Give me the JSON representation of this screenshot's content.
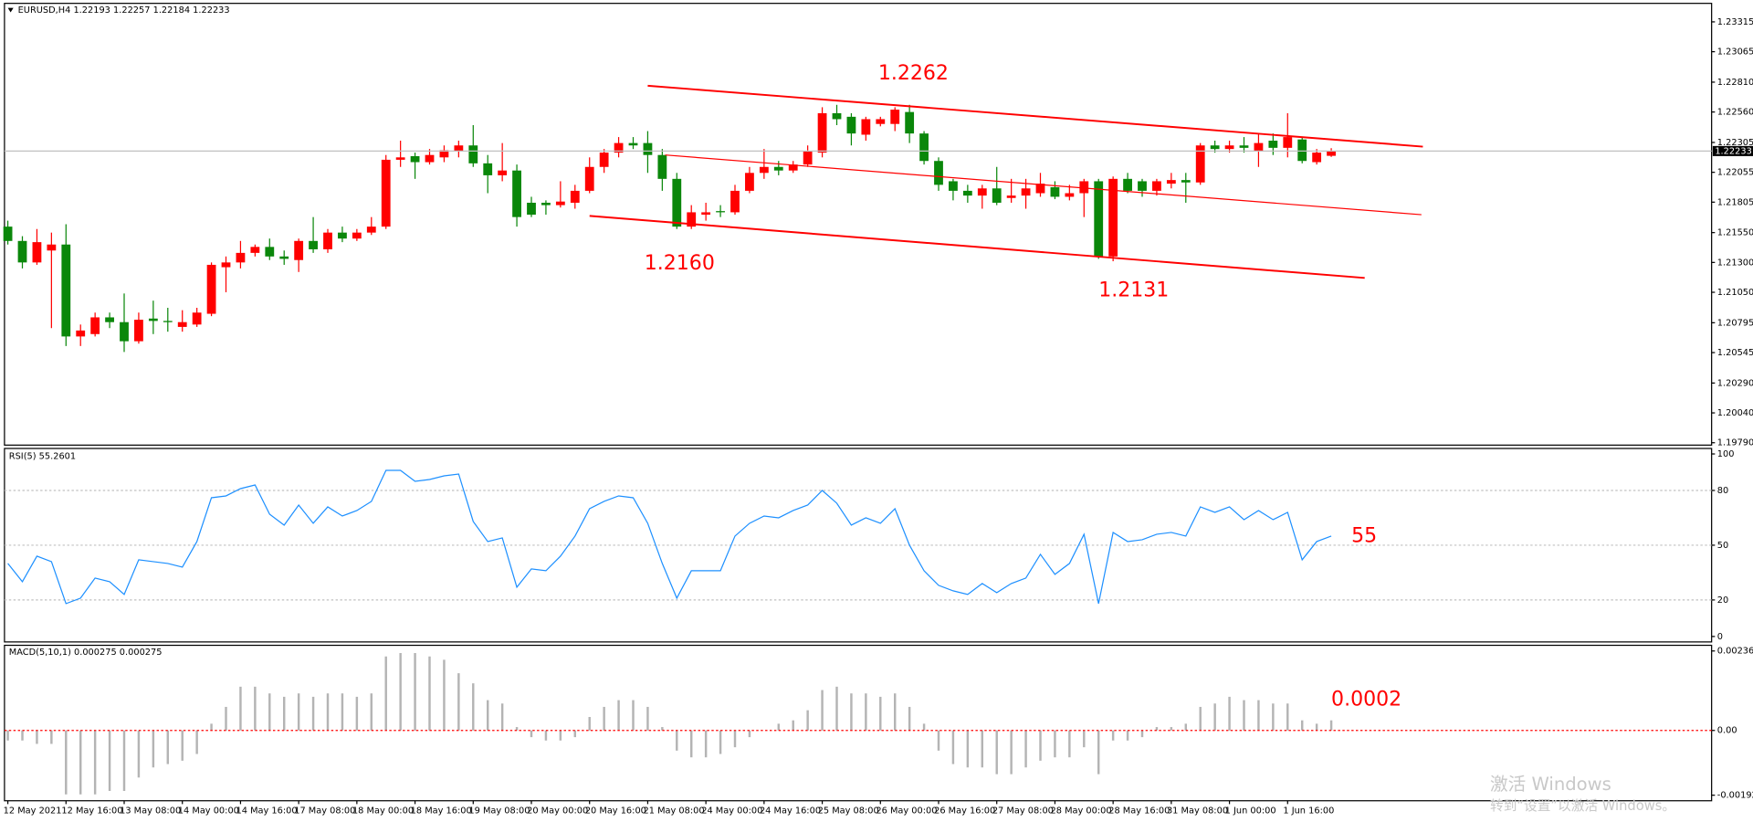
{
  "chart_data": [
    {
      "type": "candlestick",
      "title": "EURUSD,H4  1.22193 1.22257 1.22184 1.22233",
      "categories": [
        "12 May 2021",
        null,
        null,
        null,
        "12 May 16:00",
        null,
        null,
        null,
        "13 May 08:00",
        null,
        null,
        null,
        "14 May 00:00",
        null,
        null,
        null,
        "14 May 16:00",
        null,
        null,
        null,
        "17 May 08:00",
        null,
        null,
        null,
        "18 May 00:00",
        null,
        null,
        null,
        "18 May 16:00",
        null,
        null,
        null,
        "19 May 08:00",
        null,
        null,
        null,
        "20 May 00:00",
        null,
        null,
        null,
        "20 May 16:00",
        null,
        null,
        null,
        "21 May 08:00",
        null,
        null,
        null,
        "24 May 00:00",
        null,
        null,
        null,
        "24 May 16:00",
        null,
        null,
        null,
        "25 May 08:00",
        null,
        null,
        null,
        "26 May 00:00",
        null,
        null,
        null,
        "26 May 16:00",
        null,
        null,
        null,
        "27 May 08:00",
        null,
        null,
        null,
        "28 May 00:00",
        null,
        null,
        null,
        "28 May 16:00",
        null,
        null,
        null,
        "31 May 08:00",
        null,
        null,
        null,
        "1 Jun 00:00",
        null,
        null,
        null,
        "1 Jun 16:00",
        null,
        null,
        null
      ],
      "open": [
        1.216,
        1.2148,
        1.213,
        1.214,
        1.2145,
        1.2068,
        1.207,
        1.2084,
        1.208,
        1.2064,
        1.2083,
        1.2081,
        1.2076,
        1.2078,
        1.2087,
        1.2126,
        1.213,
        1.2138,
        1.2143,
        1.2135,
        1.2132,
        1.2148,
        1.2141,
        1.2155,
        1.215,
        1.2155,
        1.216,
        1.2216,
        1.2219,
        1.2214,
        1.2218,
        1.2223,
        1.2228,
        1.2213,
        1.2203,
        1.2207,
        1.218,
        1.218,
        1.2178,
        1.218,
        1.219,
        1.221,
        1.2222,
        1.223,
        1.223,
        1.222,
        1.22,
        1.216,
        1.217,
        1.2173,
        1.2172,
        1.219,
        1.2205,
        1.221,
        1.2207,
        1.2212,
        1.2222,
        1.2255,
        1.2252,
        1.2237,
        1.2246,
        1.2246,
        1.2256,
        1.2238,
        1.2215,
        1.2198,
        1.219,
        1.2186,
        1.2192,
        1.2184,
        1.2186,
        1.2188,
        1.2193,
        1.2185,
        1.2188,
        1.2198,
        1.2135,
        1.22,
        1.2198,
        1.219,
        1.2196,
        1.2199,
        1.2197,
        1.2228,
        1.2225,
        1.2228,
        1.2223,
        1.2232,
        1.2226,
        1.2233,
        1.2214,
        1.22193
      ],
      "high": [
        1.2165,
        1.2152,
        1.2158,
        1.2155,
        1.2162,
        1.2078,
        1.2088,
        1.2088,
        1.2104,
        1.2088,
        1.2098,
        1.2092,
        1.209,
        1.2092,
        1.213,
        1.2135,
        1.2148,
        1.2145,
        1.215,
        1.214,
        1.215,
        1.2168,
        1.2158,
        1.216,
        1.2158,
        1.2168,
        1.222,
        1.2232,
        1.2222,
        1.2225,
        1.2228,
        1.2232,
        1.2245,
        1.222,
        1.223,
        1.2212,
        1.2185,
        1.2182,
        1.2198,
        1.2195,
        1.2218,
        1.2225,
        1.2235,
        1.2235,
        1.224,
        1.2225,
        1.2205,
        1.2178,
        1.218,
        1.2178,
        1.2195,
        1.221,
        1.2225,
        1.2215,
        1.2215,
        1.2228,
        1.226,
        1.2262,
        1.2255,
        1.2252,
        1.2252,
        1.226,
        1.2262,
        1.224,
        1.2218,
        1.22,
        1.2195,
        1.2195,
        1.221,
        1.22,
        1.22,
        1.2205,
        1.2198,
        1.2195,
        1.22,
        1.22,
        1.2202,
        1.2205,
        1.22,
        1.22,
        1.2205,
        1.2205,
        1.223,
        1.2232,
        1.2232,
        1.2235,
        1.2238,
        1.2238,
        1.2255,
        1.2235,
        1.2225,
        1.22257
      ],
      "low": [
        1.2145,
        1.2125,
        1.2128,
        1.2075,
        1.206,
        1.206,
        1.2068,
        1.2075,
        1.2055,
        1.2062,
        1.207,
        1.2072,
        1.2072,
        1.2076,
        1.2085,
        1.2105,
        1.2125,
        1.2135,
        1.2132,
        1.2128,
        1.2122,
        1.2138,
        1.2138,
        1.2147,
        1.2148,
        1.2153,
        1.2158,
        1.221,
        1.22,
        1.2212,
        1.2214,
        1.2218,
        1.221,
        1.2188,
        1.2198,
        1.216,
        1.2168,
        1.217,
        1.2176,
        1.2175,
        1.2188,
        1.2205,
        1.2218,
        1.2225,
        1.2205,
        1.219,
        1.2158,
        1.2158,
        1.2165,
        1.2168,
        1.217,
        1.2188,
        1.22,
        1.2203,
        1.2205,
        1.221,
        1.2218,
        1.2245,
        1.2228,
        1.2232,
        1.2244,
        1.224,
        1.223,
        1.2212,
        1.219,
        1.2182,
        1.218,
        1.2175,
        1.2178,
        1.218,
        1.2175,
        1.2185,
        1.2183,
        1.2182,
        1.2168,
        1.2133,
        1.2131,
        1.2188,
        1.2185,
        1.2186,
        1.2192,
        1.218,
        1.2195,
        1.2222,
        1.2222,
        1.2222,
        1.221,
        1.222,
        1.2218,
        1.2213,
        1.2212,
        1.22184
      ],
      "close": [
        1.2148,
        1.213,
        1.2147,
        1.2145,
        1.2068,
        1.2073,
        1.2084,
        1.208,
        1.2064,
        1.2082,
        1.2081,
        1.208,
        1.208,
        1.2088,
        1.2128,
        1.213,
        1.2138,
        1.2143,
        1.2135,
        1.2133,
        1.2148,
        1.2141,
        1.2155,
        1.215,
        1.2155,
        1.216,
        1.2216,
        1.2218,
        1.2214,
        1.222,
        1.2224,
        1.2228,
        1.2213,
        1.2203,
        1.2207,
        1.2168,
        1.217,
        1.2178,
        1.2181,
        1.219,
        1.221,
        1.2222,
        1.223,
        1.2228,
        1.222,
        1.22,
        1.216,
        1.2172,
        1.2172,
        1.2172,
        1.219,
        1.2205,
        1.221,
        1.2207,
        1.2212,
        1.2223,
        1.2255,
        1.225,
        1.2238,
        1.225,
        1.225,
        1.2258,
        1.2238,
        1.2215,
        1.2195,
        1.219,
        1.2186,
        1.2192,
        1.218,
        1.2186,
        1.2192,
        1.2196,
        1.2185,
        1.2188,
        1.2198,
        1.2135,
        1.22,
        1.219,
        1.219,
        1.2198,
        1.2199,
        1.2197,
        1.2228,
        1.2225,
        1.2228,
        1.2226,
        1.223,
        1.2226,
        1.2235,
        1.2215,
        1.2222,
        1.22233
      ],
      "up_color": "#ff0000",
      "down_color": "#0a870a",
      "bid": 1.22233,
      "ylim": [
        1.1977,
        1.2347
      ],
      "yticks": [
        {
          "value": 1.23315,
          "label": "1.23315"
        },
        {
          "value": 1.23065,
          "label": "1.23065"
        },
        {
          "value": 1.2281,
          "label": "1.22810"
        },
        {
          "value": 1.2256,
          "label": "1.22560"
        },
        {
          "value": 1.22305,
          "label": "1.22305"
        },
        {
          "value": 1.22055,
          "label": "1.22055"
        },
        {
          "value": 1.21805,
          "label": "1.21805"
        },
        {
          "value": 1.2155,
          "label": "1.21550"
        },
        {
          "value": 1.213,
          "label": "1.21300"
        },
        {
          "value": 1.2105,
          "label": "1.21050"
        },
        {
          "value": 1.20795,
          "label": "1.20795"
        },
        {
          "value": 1.20545,
          "label": "1.20545"
        },
        {
          "value": 1.2029,
          "label": "1.20290"
        },
        {
          "value": 1.2004,
          "label": "1.20040"
        },
        {
          "value": 1.1979,
          "label": "1.19790"
        }
      ],
      "lines": [
        {
          "x": [
            44,
            97.3
          ],
          "y": [
            1.2278,
            1.2227
          ]
        },
        {
          "x": [
            45.2,
            97.2
          ],
          "y": [
            1.222,
            1.217
          ]
        },
        {
          "x": [
            40,
            93.3
          ],
          "y": [
            1.2169,
            1.2117
          ]
        }
      ],
      "line_color": "#ff0000",
      "annotations": [
        "1.2262",
        "1.2160",
        "1.2131"
      ]
    },
    {
      "type": "line",
      "title": "RSI(5) 55.2601",
      "color": "#1e90ff",
      "values": [
        40,
        30,
        44,
        41,
        18,
        21,
        32,
        30,
        23,
        42,
        41,
        40,
        38,
        52,
        76,
        77,
        81,
        83,
        67,
        61,
        72,
        62,
        71,
        66,
        69,
        74,
        91,
        91,
        85,
        86,
        88,
        89,
        63,
        52,
        54,
        27,
        37,
        36,
        44,
        55,
        70,
        74,
        77,
        76,
        62,
        40,
        21,
        36,
        36,
        36,
        55,
        62,
        66,
        65,
        69,
        72,
        80,
        73,
        61,
        65,
        62,
        70,
        50,
        36,
        28,
        25,
        23,
        29,
        24,
        29,
        32,
        45,
        34,
        40,
        56,
        18,
        57,
        52,
        53,
        56,
        57,
        55,
        71,
        68,
        71,
        64,
        69,
        64,
        68,
        42,
        52,
        55
      ],
      "ylim": [
        -3,
        103
      ],
      "yticks": [
        100,
        80,
        50,
        20,
        0
      ],
      "levels": [
        80,
        50,
        20
      ],
      "annotations": [
        "55"
      ]
    },
    {
      "type": "bar",
      "title": "MACD(5,10,1) 0.000275 0.000275",
      "color": "#b4b4b4",
      "zero_line_color": "#ff0000",
      "values": [
        -0.0003,
        -0.0003,
        -0.0004,
        -0.0004,
        -0.0019,
        -0.0019,
        -0.0019,
        -0.0018,
        -0.0018,
        -0.0014,
        -0.0011,
        -0.001,
        -0.0009,
        -0.0007,
        0.0002,
        0.0007,
        0.0013,
        0.0013,
        0.0011,
        0.001,
        0.0011,
        0.001,
        0.0011,
        0.0011,
        0.001,
        0.0011,
        0.0022,
        0.0023,
        0.0023,
        0.0022,
        0.0021,
        0.0017,
        0.0014,
        0.0009,
        0.0008,
        0.0001,
        -0.0002,
        -0.0003,
        -0.0003,
        -0.0002,
        0.0004,
        0.0007,
        0.0009,
        0.0009,
        0.0007,
        0.0001,
        -0.0006,
        -0.0008,
        -0.0008,
        -0.0007,
        -0.0005,
        -0.0002,
        0.0,
        0.0002,
        0.0003,
        0.0006,
        0.0012,
        0.0013,
        0.0011,
        0.0011,
        0.001,
        0.0011,
        0.0007,
        0.0002,
        -0.0006,
        -0.001,
        -0.0011,
        -0.0011,
        -0.0013,
        -0.0013,
        -0.0011,
        -0.0009,
        -0.0008,
        -0.0008,
        -0.0005,
        -0.0013,
        -0.0003,
        -0.0003,
        -0.0002,
        0.0001,
        0.0001,
        0.0002,
        0.0007,
        0.0008,
        0.001,
        0.0009,
        0.0009,
        0.0008,
        0.0008,
        0.0003,
        0.0002,
        0.0003
      ],
      "ylim": [
        -0.00209,
        0.00253
      ],
      "yticks": [
        0.002361,
        {
          "value": 0,
          "label": "0.00"
        },
        -0.001925
      ],
      "annotations": [
        "0.0002"
      ]
    }
  ],
  "watermark": [
    "激活 Windows",
    "转到“设置”以激活 Windows。"
  ]
}
